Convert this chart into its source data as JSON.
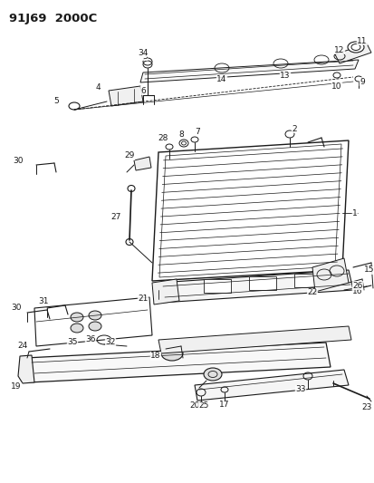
{
  "title": "91J69  2000C",
  "bg_color": "#ffffff",
  "line_color": "#1a1a1a",
  "title_fontsize": 9.5,
  "label_fontsize": 6.5,
  "figsize": [
    4.14,
    5.33
  ],
  "dpi": 100
}
